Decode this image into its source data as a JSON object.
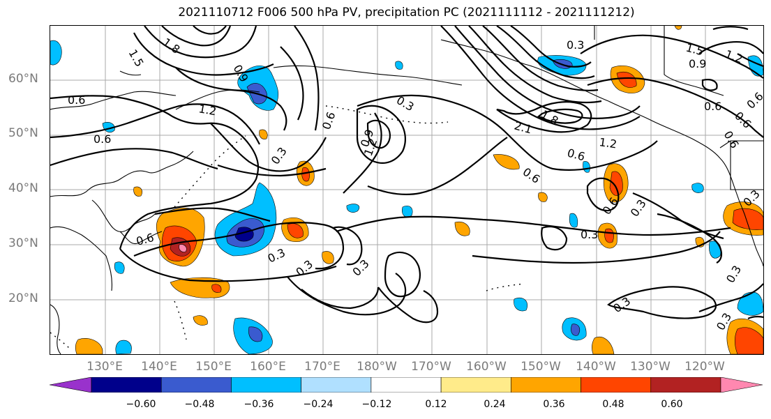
{
  "title": "2021110712 F006 500 hPa PV, precipitation PC (2021111112 - 2021111212)",
  "latitude_labels": [
    "60°N",
    "50°N",
    "40°N",
    "30°N",
    "20°N"
  ],
  "longitude_labels": [
    "130°E",
    "140°E",
    "150°E",
    "160°E",
    "170°E",
    "180°W",
    "170°W",
    "160°W",
    "150°W",
    "140°W",
    "130°W",
    "120°W"
  ],
  "colorbar": {
    "ticks": [
      "−0.60",
      "−0.48",
      "−0.36",
      "−0.24",
      "−0.12",
      "0.12",
      "0.24",
      "0.36",
      "0.48",
      "0.60"
    ],
    "colors": [
      "#9932cc",
      "#00008b",
      "#3a5bcf",
      "#00bfff",
      "#b0e0ff",
      "#ffffff",
      "#ffeb8a",
      "#ffa500",
      "#ff4500",
      "#b22222",
      "#ff88b0"
    ]
  },
  "contour_labels": [
    "0.6",
    "0.6",
    "0.9",
    "1.2",
    "1.5",
    "1.8",
    "0.3",
    "0.6",
    "0.9",
    "1.2",
    "0.3",
    "0.6",
    "0.3",
    "1.2",
    "1.5",
    "0.3",
    "0.9",
    "0.6",
    "1.8",
    "2.1",
    "1.2",
    "0.6",
    "0.6",
    "0.6",
    "0.3",
    "0.3",
    "0.3",
    "0.3",
    "0.3",
    "0.3",
    "0.3",
    "0.6",
    "0.6",
    "0.6",
    "0.3"
  ]
}
